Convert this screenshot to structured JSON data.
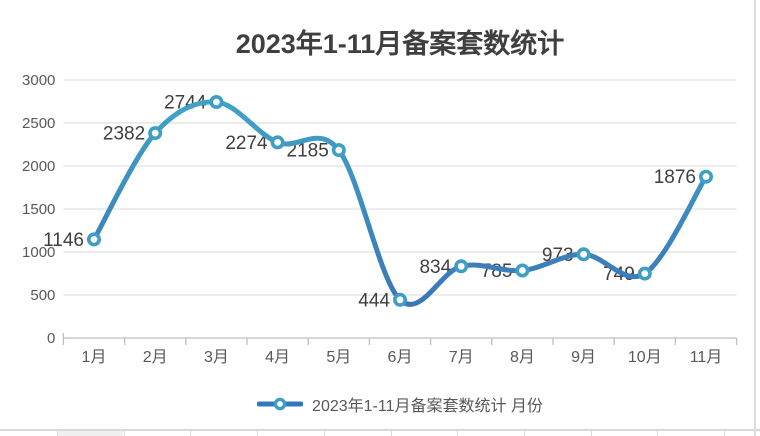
{
  "chart_data": {
    "type": "line",
    "title": "2023年1-11月备案套数统计",
    "categories": [
      "1月",
      "2月",
      "3月",
      "4月",
      "5月",
      "6月",
      "7月",
      "8月",
      "9月",
      "10月",
      "11月"
    ],
    "series": [
      {
        "name": "2023年1-11月备案套数统计 月份",
        "values": [
          1146,
          2382,
          2744,
          2274,
          2185,
          444,
          834,
          785,
          973,
          749,
          1876
        ]
      }
    ],
    "data_labels_shown": true,
    "ylim": [
      0,
      3000
    ],
    "ytick_step": 500,
    "yticks": [
      0,
      500,
      1000,
      1500,
      2000,
      2500,
      3000
    ],
    "xlabel": "",
    "ylabel": "",
    "grid": "horizontal",
    "smooth_line": true,
    "marker": "ring-circle",
    "legend_position": "bottom",
    "colors": {
      "line_top": "#41a8c8",
      "line_bottom": "#3a6eb5",
      "marker_ring": "#3e9ec4",
      "marker_fill": "#ffffff",
      "legend_line": "#3377bb",
      "gridline": "#d9d9d9",
      "axis": "#bfbfbf",
      "data_label": "#3f3f3f",
      "tick_label": "#595959",
      "title": "#3f3f3f"
    }
  }
}
